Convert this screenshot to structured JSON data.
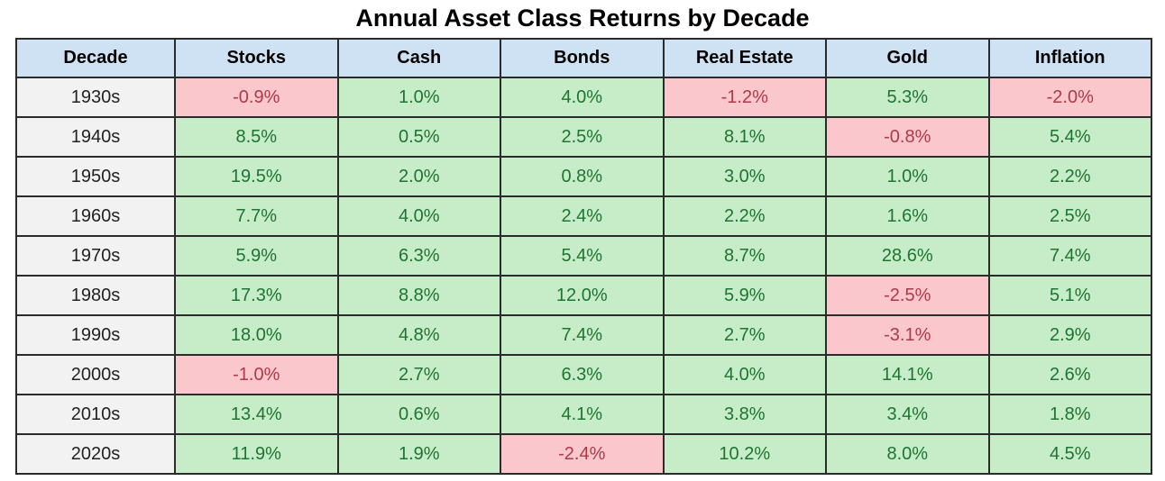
{
  "title": "Annual Asset Class Returns by Decade",
  "colors": {
    "header_bg": "#cfe2f3",
    "decade_col_bg": "#f2f2f2",
    "positive_bg": "#c6ecc8",
    "positive_text": "#1e7433",
    "negative_bg": "#f9c7cc",
    "negative_text": "#b03a48",
    "grid_border": "#2b2b2b",
    "title_color": "#000000"
  },
  "table": {
    "columns": [
      "Decade",
      "Stocks",
      "Cash",
      "Bonds",
      "Real Estate",
      "Gold",
      "Inflation"
    ],
    "rows": [
      {
        "decade": "1930s",
        "values": [
          "-0.9%",
          "1.0%",
          "4.0%",
          "-1.2%",
          "5.3%",
          "-2.0%"
        ]
      },
      {
        "decade": "1940s",
        "values": [
          "8.5%",
          "0.5%",
          "2.5%",
          "8.1%",
          "-0.8%",
          "5.4%"
        ]
      },
      {
        "decade": "1950s",
        "values": [
          "19.5%",
          "2.0%",
          "0.8%",
          "3.0%",
          "1.0%",
          "2.2%"
        ]
      },
      {
        "decade": "1960s",
        "values": [
          "7.7%",
          "4.0%",
          "2.4%",
          "2.2%",
          "1.6%",
          "2.5%"
        ]
      },
      {
        "decade": "1970s",
        "values": [
          "5.9%",
          "6.3%",
          "5.4%",
          "8.7%",
          "28.6%",
          "7.4%"
        ]
      },
      {
        "decade": "1980s",
        "values": [
          "17.3%",
          "8.8%",
          "12.0%",
          "5.9%",
          "-2.5%",
          "5.1%"
        ]
      },
      {
        "decade": "1990s",
        "values": [
          "18.0%",
          "4.8%",
          "7.4%",
          "2.7%",
          "-3.1%",
          "2.9%"
        ]
      },
      {
        "decade": "2000s",
        "values": [
          "-1.0%",
          "2.7%",
          "6.3%",
          "4.0%",
          "14.1%",
          "2.6%"
        ]
      },
      {
        "decade": "2010s",
        "values": [
          "13.4%",
          "0.6%",
          "4.1%",
          "3.8%",
          "3.4%",
          "1.8%"
        ]
      },
      {
        "decade": "2020s",
        "values": [
          "11.9%",
          "1.9%",
          "-2.4%",
          "10.2%",
          "8.0%",
          "4.5%"
        ]
      }
    ]
  },
  "chart_data": {
    "type": "table",
    "title": "Annual Asset Class Returns by Decade",
    "categories": [
      "1930s",
      "1940s",
      "1950s",
      "1960s",
      "1970s",
      "1980s",
      "1990s",
      "2000s",
      "2010s",
      "2020s"
    ],
    "unit": "percent_annual_return",
    "series": [
      {
        "name": "Stocks",
        "values": [
          -0.9,
          8.5,
          19.5,
          7.7,
          5.9,
          17.3,
          18.0,
          -1.0,
          13.4,
          11.9
        ]
      },
      {
        "name": "Cash",
        "values": [
          1.0,
          0.5,
          2.0,
          4.0,
          6.3,
          8.8,
          4.8,
          2.7,
          0.6,
          1.9
        ]
      },
      {
        "name": "Bonds",
        "values": [
          4.0,
          2.5,
          0.8,
          2.4,
          5.4,
          12.0,
          7.4,
          6.3,
          4.1,
          -2.4
        ]
      },
      {
        "name": "Real Estate",
        "values": [
          -1.2,
          8.1,
          3.0,
          2.2,
          8.7,
          5.9,
          2.7,
          4.0,
          3.8,
          10.2
        ]
      },
      {
        "name": "Gold",
        "values": [
          5.3,
          -0.8,
          1.0,
          1.6,
          28.6,
          -2.5,
          -3.1,
          14.1,
          3.4,
          8.0
        ]
      },
      {
        "name": "Inflation",
        "values": [
          -2.0,
          5.4,
          2.2,
          2.5,
          7.4,
          5.1,
          2.9,
          2.6,
          1.8,
          4.5
        ]
      }
    ],
    "conditional_format": "negative values highlighted red, non-negative highlighted green"
  }
}
